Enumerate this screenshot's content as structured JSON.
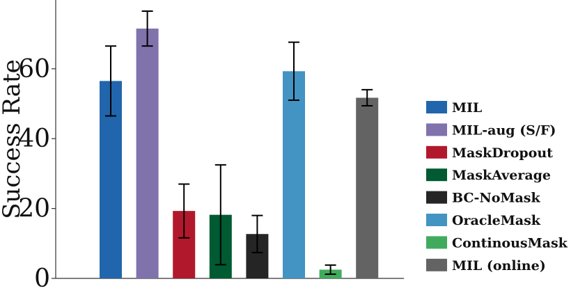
{
  "chart_data": {
    "type": "bar",
    "title": "",
    "xlabel": "",
    "ylabel": "Success Rate",
    "ylim": [
      0,
      80
    ],
    "yticks": [
      0,
      20,
      40,
      60
    ],
    "grid": false,
    "legend_position": "right",
    "series": [
      {
        "name": "MIL",
        "value": 56.5,
        "error": 10.0,
        "color": "#2166ac"
      },
      {
        "name": "MIL-aug (S/F)",
        "value": 71.5,
        "error": 5.0,
        "color": "#8073ac"
      },
      {
        "name": "MaskDropout",
        "value": 19.3,
        "error": 7.7,
        "color": "#b2182b"
      },
      {
        "name": "MaskAverage",
        "value": 18.2,
        "error": 14.3,
        "color": "#005a32"
      },
      {
        "name": "BC-NoMask",
        "value": 12.7,
        "error": 5.3,
        "color": "#252525"
      },
      {
        "name": "OracleMask",
        "value": 59.3,
        "error": 8.3,
        "color": "#4393c3"
      },
      {
        "name": "ContinousMask",
        "value": 2.5,
        "error": 1.3,
        "color": "#41ab5d"
      },
      {
        "name": "MIL (online)",
        "value": 51.7,
        "error": 2.3,
        "color": "#636363"
      }
    ]
  }
}
